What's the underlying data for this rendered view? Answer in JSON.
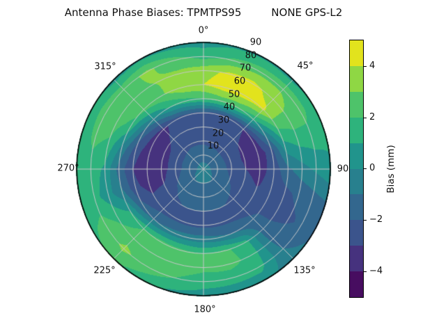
{
  "title": "Antenna Phase Biases: TPMTPS95         NONE GPS-L2",
  "chart_data": {
    "type": "polar_contour",
    "title": "Antenna Phase Biases: TPMTPS95         NONE GPS-L2",
    "angle_unit": "degrees azimuth, clockwise from top",
    "angle_labels": [
      "0°",
      "45°",
      "90",
      "135°",
      "180°",
      "225°",
      "270°",
      "315°"
    ],
    "radius_labels": [
      "10",
      "20",
      "30",
      "40",
      "50",
      "60",
      "70",
      "80",
      "90"
    ],
    "radius_range": [
      0,
      90
    ],
    "grid": "on",
    "levels": [
      -5,
      -4,
      -3,
      -2,
      -1,
      0,
      1,
      2,
      3,
      4,
      5
    ],
    "colorbar": {
      "label": "Bias (mm)",
      "ticks": [
        "4",
        "2",
        "0",
        "−2",
        "−4"
      ],
      "tick_values": [
        4,
        2,
        0,
        -2,
        -4
      ],
      "range": [
        -5,
        5
      ],
      "band_colors": [
        "#470d60",
        "#46327e",
        "#3b548c",
        "#33678e",
        "#28808e",
        "#21948c",
        "#2eb37c",
        "#4ec36a",
        "#8fd744",
        "#e2e31d"
      ]
    },
    "azimuth_deg": [
      0,
      15,
      30,
      45,
      60,
      75,
      90,
      105,
      120,
      135,
      150,
      165,
      180,
      195,
      210,
      225,
      240,
      255,
      270,
      285,
      300,
      315,
      330,
      345
    ],
    "zenith_deg": [
      0,
      10,
      20,
      30,
      40,
      50,
      60,
      70,
      80,
      90
    ],
    "bias_mm": [
      [
        -0.6,
        -0.6,
        -0.6,
        -0.6,
        -0.6,
        -0.6,
        -0.6,
        -0.6,
        -0.6,
        -0.6,
        -0.6,
        -0.6,
        -0.6,
        -0.6,
        -0.6,
        -0.6,
        -0.6,
        -0.6,
        -0.6,
        -0.6,
        -0.6,
        -0.6,
        -0.6,
        -0.6
      ],
      [
        -1.4,
        -1.5,
        -1.5,
        -1.5,
        -1.5,
        -1.4,
        -1.4,
        -1.3,
        -1.2,
        -1.1,
        -1.0,
        -1.0,
        -1.0,
        -1.0,
        -1.0,
        -1.1,
        -1.2,
        -1.4,
        -1.5,
        -1.5,
        -1.5,
        -1.5,
        -1.4,
        -1.4
      ],
      [
        -2.2,
        -2.3,
        -2.3,
        -2.4,
        -2.4,
        -2.4,
        -2.3,
        -2.1,
        -1.9,
        -1.7,
        -1.6,
        -1.5,
        -1.5,
        -1.5,
        -1.6,
        -1.7,
        -1.9,
        -2.2,
        -2.4,
        -2.4,
        -2.4,
        -2.3,
        -2.2,
        -2.2
      ],
      [
        -2.4,
        -2.5,
        -2.6,
        -2.8,
        -3.1,
        -3.2,
        -3.0,
        -2.7,
        -2.4,
        -2.2,
        -2.0,
        -2.0,
        -2.0,
        -2.0,
        -2.0,
        -2.2,
        -2.6,
        -3.2,
        -3.5,
        -3.5,
        -3.3,
        -2.8,
        -2.5,
        -2.4
      ],
      [
        -2.3,
        -2.5,
        -2.7,
        -3.0,
        -3.6,
        -3.7,
        -3.4,
        -3.1,
        -2.7,
        -2.4,
        -2.3,
        -2.3,
        -2.3,
        -2.3,
        -2.3,
        -2.4,
        -2.8,
        -3.5,
        -3.8,
        -3.8,
        -3.6,
        -3.3,
        -2.5,
        -2.3
      ],
      [
        2.0,
        2.4,
        2.2,
        1.2,
        -0.5,
        -2.4,
        -2.6,
        -2.5,
        -2.3,
        -1.8,
        -1.2,
        -0.8,
        -0.5,
        -0.5,
        -0.7,
        -1.1,
        -1.8,
        -2.7,
        -3.0,
        -2.5,
        -1.5,
        -0.2,
        1.0,
        1.6
      ],
      [
        4.0,
        4.6,
        4.5,
        4.2,
        2.2,
        0.5,
        -1.2,
        -2.2,
        -2.4,
        -1.6,
        1.4,
        2.2,
        2.0,
        2.3,
        2.4,
        2.0,
        1.0,
        -0.8,
        -1.4,
        -0.2,
        1.6,
        2.4,
        2.8,
        3.8
      ],
      [
        3.6,
        4.2,
        4.3,
        3.6,
        2.6,
        1.2,
        -0.4,
        -1.8,
        -2.2,
        -1.4,
        1.6,
        2.4,
        2.3,
        2.6,
        2.8,
        2.6,
        1.8,
        0.4,
        0.8,
        1.8,
        2.6,
        2.8,
        3.0,
        3.2
      ],
      [
        1.6,
        2.2,
        2.6,
        2.8,
        2.4,
        1.4,
        0.2,
        -1.4,
        -1.8,
        -1.0,
        1.4,
        1.4,
        1.4,
        2.0,
        2.6,
        3.2,
        2.4,
        1.4,
        1.6,
        2.2,
        2.6,
        2.6,
        3.2,
        2.4
      ],
      [
        0.6,
        0.8,
        0.8,
        0.6,
        1.2,
        1.2,
        0.8,
        -1.0,
        -1.2,
        -0.6,
        0.4,
        0.5,
        0.6,
        0.8,
        1.4,
        2.2,
        1.8,
        1.2,
        1.0,
        1.4,
        1.2,
        0.6,
        0.8,
        0.6
      ]
    ],
    "style": {
      "grid_color": "#c6c8c9",
      "outline_color": "#000000",
      "background": "#ffffff"
    }
  }
}
